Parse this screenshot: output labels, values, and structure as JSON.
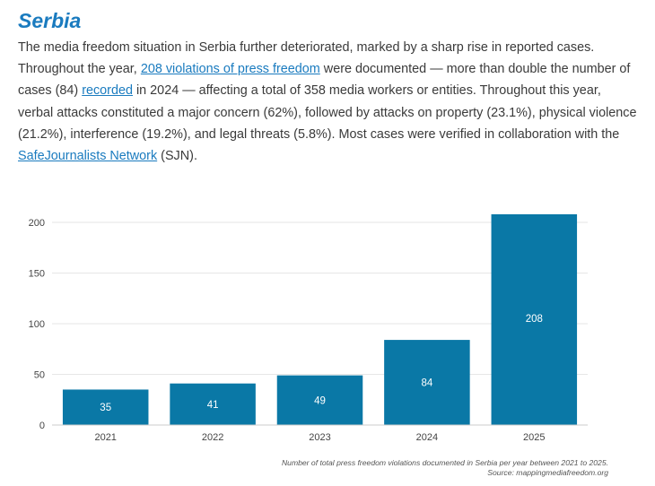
{
  "country": "Serbia",
  "intro": {
    "s1": "The media freedom situation in Serbia further deteriorated, marked by a sharp rise in reported cases. Throughout the year, ",
    "link1": "208 violations of press freedom",
    "s2": " were documented — more than double the number of cases (84) ",
    "link2": "recorded",
    "s3": " in 2024 — affecting a total of 358 media workers or entities. Throughout this year, verbal attacks constituted a major concern (62%), followed by attacks on property (23.1%), physical violence (21.2%), interference (19.2%), and legal threats (5.8%). Most cases were verified in collaboration with the ",
    "link3": "SafeJournalists Network",
    "s4": " (SJN)."
  },
  "chart_data": {
    "type": "bar",
    "categories": [
      "2021",
      "2022",
      "2023",
      "2024",
      "2025"
    ],
    "values": [
      35,
      41,
      49,
      84,
      208
    ],
    "ylim": [
      0,
      220
    ],
    "yticks": [
      0,
      50,
      100,
      150,
      200
    ],
    "grid": true,
    "bar_color": "#0a78a6",
    "label_color": "#ffffff"
  },
  "caption": {
    "line1": "Number of total press freedom violations documented in Serbia per year between 2021 to 2025.",
    "line2": "Source: mappingmediafreedom.org"
  }
}
